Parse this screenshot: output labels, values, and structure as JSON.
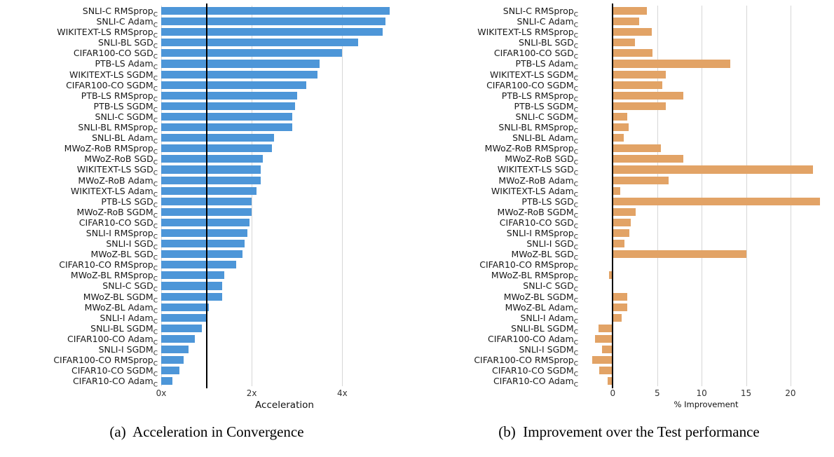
{
  "figure": {
    "captions": {
      "a": "(a)  Acceleration in Convergence",
      "b": "(b)  Improvement over the Test performance"
    }
  },
  "chart_data": [
    {
      "id": "chart-a",
      "type": "bar",
      "orientation": "horizontal",
      "title": "",
      "xlabel": "Acceleration",
      "ylabel": "",
      "bar_color": "#4d96d8",
      "grid": true,
      "xlim": [
        0,
        5.45
      ],
      "reference_line_x": 1,
      "label_subscript": "C",
      "ticks": [
        {
          "x": 0,
          "label": "0x"
        },
        {
          "x": 2,
          "label": "2x"
        },
        {
          "x": 4,
          "label": "4x"
        }
      ],
      "categories": [
        "SNLI-C RMSprop",
        "SNLI-C Adam",
        "WIKITEXT-LS RMSprop",
        "SNLI-BL SGD",
        "CIFAR100-CO SGD",
        "PTB-LS Adam",
        "WIKITEXT-LS SGDM",
        "CIFAR100-CO SGDM",
        "PTB-LS RMSprop",
        "PTB-LS SGDM",
        "SNLI-C SGDM",
        "SNLI-BL RMSprop",
        "SNLI-BL Adam",
        "MWoZ-RoB RMSprop",
        "MWoZ-RoB SGD",
        "WIKITEXT-LS SGD",
        "MWoZ-RoB Adam",
        "WIKITEXT-LS Adam",
        "PTB-LS SGD",
        "MWoZ-RoB SGDM",
        "CIFAR10-CO SGD",
        "SNLI-I RMSprop",
        "SNLI-I SGD",
        "MWoZ-BL SGD",
        "CIFAR10-CO RMSprop",
        "MWoZ-BL RMSprop",
        "SNLI-C SGD",
        "MWoZ-BL SGDM",
        "MWoZ-BL Adam",
        "SNLI-I Adam",
        "SNLI-BL SGDM",
        "CIFAR100-CO Adam",
        "SNLI-I SGDM",
        "CIFAR100-CO RMSprop",
        "CIFAR10-CO SGDM",
        "CIFAR10-CO Adam"
      ],
      "values": [
        5.05,
        4.95,
        4.9,
        4.35,
        4.0,
        3.5,
        3.45,
        3.2,
        3.0,
        2.95,
        2.9,
        2.9,
        2.5,
        2.45,
        2.25,
        2.2,
        2.2,
        2.1,
        2.0,
        2.0,
        1.95,
        1.9,
        1.85,
        1.8,
        1.65,
        1.4,
        1.35,
        1.35,
        1.05,
        1.0,
        0.9,
        0.75,
        0.6,
        0.5,
        0.4,
        0.25
      ]
    },
    {
      "id": "chart-b",
      "type": "bar",
      "orientation": "horizontal",
      "title": "",
      "xlabel": "% Improvement",
      "ylabel": "",
      "bar_color": "#e2a366",
      "grid": true,
      "xlim": [
        -3.5,
        24.5
      ],
      "reference_line_x": 0,
      "label_subscript": "C",
      "ticks": [
        {
          "x": 0,
          "label": "0"
        },
        {
          "x": 5,
          "label": "5"
        },
        {
          "x": 10,
          "label": "10"
        },
        {
          "x": 15,
          "label": "15"
        },
        {
          "x": 20,
          "label": "20"
        }
      ],
      "categories": [
        "SNLI-C RMSprop",
        "SNLI-C Adam",
        "WIKITEXT-LS RMSprop",
        "SNLI-BL SGD",
        "CIFAR100-CO SGD",
        "PTB-LS Adam",
        "WIKITEXT-LS SGDM",
        "CIFAR100-CO SGDM",
        "PTB-LS RMSprop",
        "PTB-LS SGDM",
        "SNLI-C SGDM",
        "SNLI-BL RMSprop",
        "SNLI-BL Adam",
        "MWoZ-RoB RMSprop",
        "MWoZ-RoB SGD",
        "WIKITEXT-LS SGD",
        "MWoZ-RoB Adam",
        "WIKITEXT-LS Adam",
        "PTB-LS SGD",
        "MWoZ-RoB SGDM",
        "CIFAR10-CO SGD",
        "SNLI-I RMSprop",
        "SNLI-I SGD",
        "MWoZ-BL SGD",
        "CIFAR10-CO RMSprop",
        "MWoZ-BL RMSprop",
        "SNLI-C SGD",
        "MWoZ-BL SGDM",
        "MWoZ-BL Adam",
        "SNLI-I Adam",
        "SNLI-BL SGDM",
        "CIFAR100-CO Adam",
        "SNLI-I SGDM",
        "CIFAR100-CO RMSprop",
        "CIFAR10-CO SGDM",
        "CIFAR10-CO Adam"
      ],
      "values": [
        3.8,
        3.0,
        4.4,
        2.5,
        4.5,
        13.2,
        6.0,
        5.6,
        7.9,
        6.0,
        1.6,
        1.8,
        1.2,
        5.4,
        7.9,
        22.5,
        6.3,
        0.8,
        23.3,
        2.6,
        2.0,
        1.9,
        1.3,
        15.0,
        0.0,
        -0.4,
        0.0,
        1.6,
        1.6,
        1.0,
        -1.6,
        -2.0,
        -1.2,
        -2.3,
        -1.5,
        -0.6
      ]
    }
  ]
}
